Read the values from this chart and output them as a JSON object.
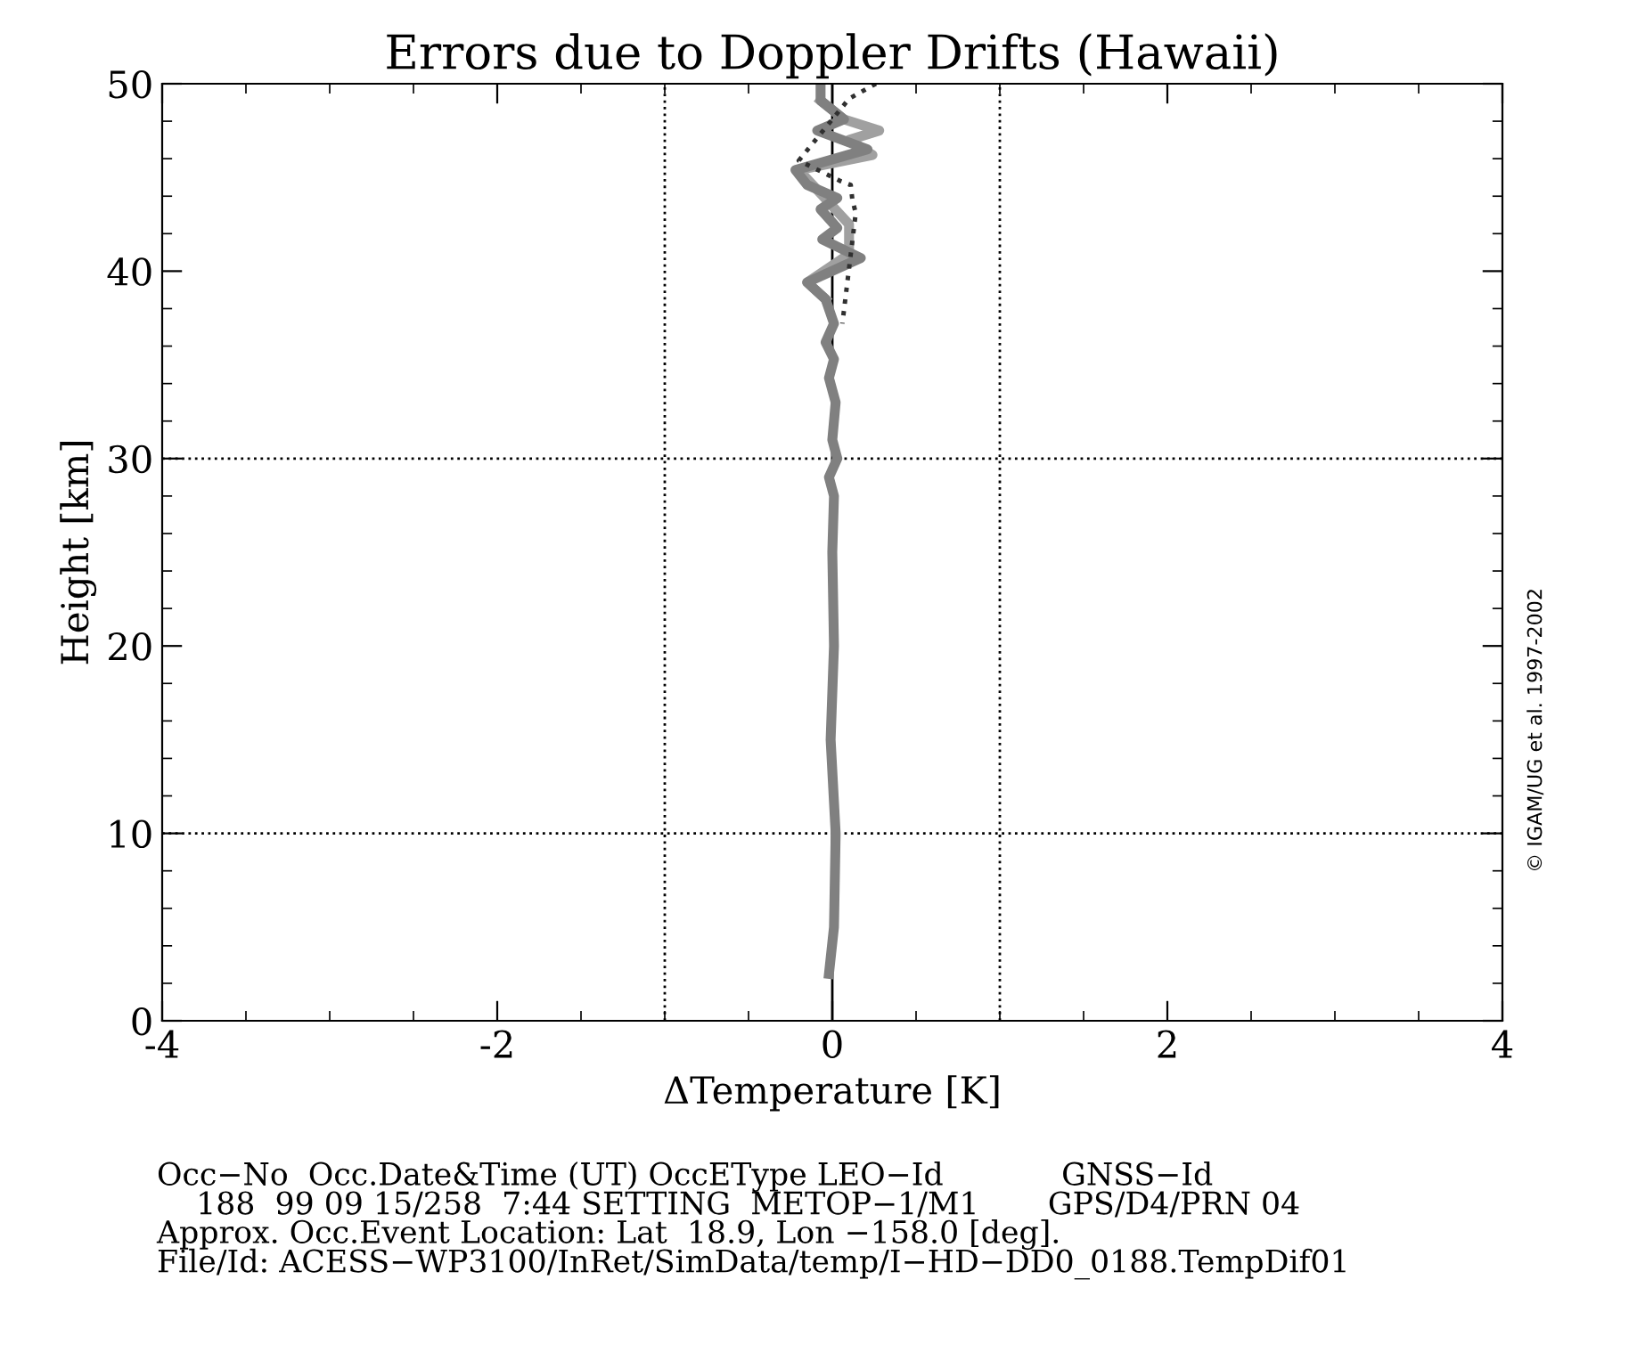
{
  "chart_data": {
    "type": "line",
    "title": "Errors due to Doppler Drifts (Hawaii)",
    "xlabel": "ΔTemperature [K]",
    "ylabel": "Height [km]",
    "xlim": [
      -4,
      4
    ],
    "ylim": [
      0,
      50
    ],
    "xticks": [
      -4,
      -2,
      0,
      2,
      4
    ],
    "yticks": [
      0,
      10,
      20,
      30,
      40,
      50
    ],
    "grid": false,
    "legend": false,
    "marker": "none",
    "ref_lines": [
      {
        "axis": "x",
        "value": 0,
        "color": "#000000",
        "line_style": "solid"
      },
      {
        "axis": "x",
        "value": -1,
        "color": "#000000",
        "line_style": "dotted"
      },
      {
        "axis": "x",
        "value": 1,
        "color": "#000000",
        "line_style": "dotted"
      },
      {
        "axis": "y",
        "value": 10,
        "color": "#000000",
        "line_style": "dotted"
      },
      {
        "axis": "y",
        "value": 30,
        "color": "#000000",
        "line_style": "dotted"
      }
    ],
    "series": [
      {
        "color": "#a0a0a0",
        "line_style": "solid",
        "x": [
          -0.07,
          0.07,
          0.28,
          0.1,
          0.24,
          -0.2,
          0.1,
          0.1,
          -0.15,
          -0.04
        ],
        "values": [
          49.1,
          48.1,
          47.5,
          47.0,
          46.2,
          45.4,
          42.5,
          40.9,
          39.4,
          38.5
        ]
      },
      {
        "color": "#808080",
        "line_style": "solid",
        "x": [
          -0.07,
          -0.07,
          0.07,
          -0.09,
          0.21,
          -0.22,
          -0.15,
          0.03,
          -0.07,
          0.03,
          -0.06,
          0.17,
          -0.15,
          -0.04,
          0.01,
          -0.04,
          0.01,
          -0.02,
          0.02,
          0.0,
          0.03,
          -0.02,
          0.01,
          0.0,
          0.01,
          -0.01,
          0.02,
          0.01,
          -0.02
        ],
        "values": [
          50.0,
          49.1,
          48.1,
          47.5,
          46.5,
          45.4,
          44.6,
          43.9,
          43.3,
          42.3,
          41.7,
          40.7,
          39.4,
          38.5,
          37.2,
          36.2,
          35.3,
          34.3,
          33,
          31,
          30,
          29,
          28,
          25,
          20,
          15,
          10,
          5,
          2.5
        ]
      },
      {
        "color": "#303030",
        "line_style": "dotted",
        "x": [
          0.26,
          0.18,
          0.1,
          -0.2,
          0.05,
          0.11,
          0.12,
          0.14,
          0.06
        ],
        "values": [
          50,
          49.6,
          49.2,
          45.9,
          44.8,
          44.6,
          43.8,
          43.1,
          37.2
        ]
      }
    ],
    "annotations": [
      "© IGAM/UG et al. 1997-2002",
      "Occ−No  Occ.Date&Time (UT) OccEType LEO−Id            GNSS−Id\n    188  99 09 15/258  7:44 SETTING  METOP−1/M1       GPS/D4/PRN 04\nApprox. Occ.Event Location: Lat  18.9, Lon −158.0 [deg].\nFile/Id: ACESS−WP3100/InRet/SimData/temp/I−HD−DD0_0188.TempDif01"
    ]
  }
}
